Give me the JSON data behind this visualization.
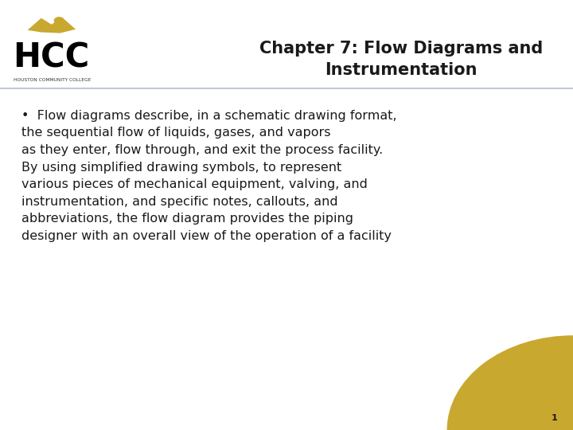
{
  "title_line1": "Chapter 7: Flow Diagrams and",
  "title_line2": "Instrumentation",
  "body_text": "•  Flow diagrams describe, in a schematic drawing format,\nthe sequential flow of liquids, gases, and vapors\nas they enter, flow through, and exit the process facility.\nBy using simplified drawing symbols, to represent\nvarious pieces of mechanical equipment, valving, and\ninstrumentation, and specific notes, callouts, and\nabbreviations, the flow diagram provides the piping\ndesigner with an overall view of the operation of a facility",
  "bg_color": "#ffffff",
  "title_color": "#1a1a1a",
  "body_color": "#1a1a1a",
  "divider_color": "#c0c8d0",
  "gold_color": "#c9a830",
  "page_number": "1",
  "hcc_text_color": "#000000"
}
